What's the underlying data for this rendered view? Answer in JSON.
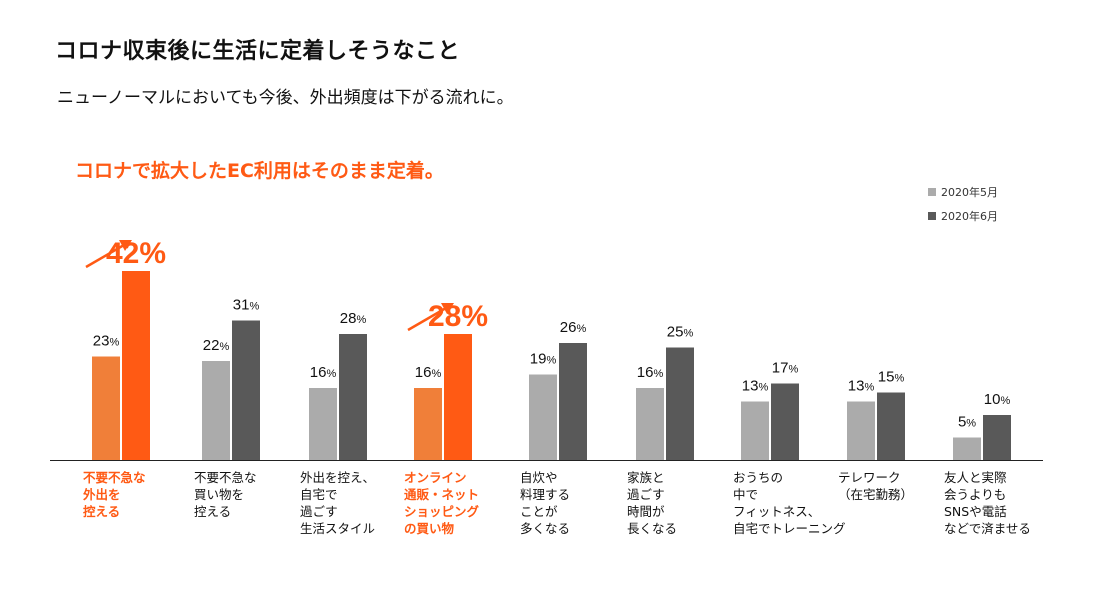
{
  "title": "コロナ収束後に生活に定着しそうなこと",
  "subtitle": "ニューノーマルにおいても今後、外出頻度は下がる流れに。",
  "headline": "コロナで拡大したEC利用はそのまま定着。",
  "colors": {
    "may": "#ababab",
    "june": "#595959",
    "may_highlight": "#f07f39",
    "june_highlight": "#ff5a14",
    "accent_text": "#ff5a14"
  },
  "chart_data": {
    "type": "bar",
    "title": "コロナ収束後に生活に定着しそうなこと",
    "xlabel": "",
    "ylabel": "",
    "unit": "%",
    "ylim": [
      0,
      45
    ],
    "legend_position": "top-right",
    "categories": [
      "不要不急な\n外出を\n控える",
      "不要不急な\n買い物を\n控える",
      "外出を控え、\n自宅で\n過ごす\n生活スタイル",
      "オンライン\n通販・ネット\nショッピング\nの買い物",
      "自炊や\n料理する\nことが\n多くなる",
      "家族と\n過ごす\n時間が\n長くなる",
      "おうちの\n中で\nフィットネス、\n自宅でトレーニング",
      "テレワーク\n（在宅勤務）",
      "友人と実際\n会うよりも\nSNSや電話\nなどで済ませる"
    ],
    "highlighted_categories": [
      0,
      3
    ],
    "series": [
      {
        "name": "2020年5月",
        "values": [
          23,
          22,
          16,
          16,
          19,
          16,
          13,
          13,
          5
        ]
      },
      {
        "name": "2020年6月",
        "values": [
          42,
          31,
          28,
          28,
          26,
          25,
          17,
          15,
          10
        ]
      }
    ]
  }
}
